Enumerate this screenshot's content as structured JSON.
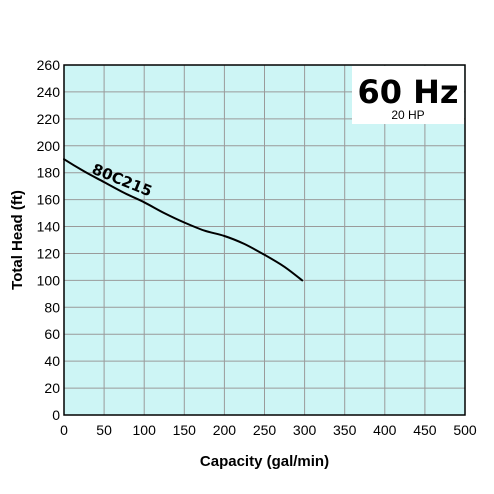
{
  "chart_data": {
    "type": "line",
    "title": "60 Hz",
    "subtitle": "20 HP",
    "xlabel": "Capacity (gal/min)",
    "ylabel": "Total Head (ft)",
    "xlim": [
      0,
      500
    ],
    "ylim": [
      0,
      260
    ],
    "xticks": [
      0,
      50,
      100,
      150,
      200,
      250,
      300,
      350,
      400,
      450,
      500
    ],
    "yticks": [
      0,
      20,
      40,
      60,
      80,
      100,
      120,
      140,
      160,
      180,
      200,
      220,
      240,
      260
    ],
    "grid": true,
    "series": [
      {
        "name": "80C215",
        "x": [
          0,
          25,
          50,
          75,
          100,
          125,
          150,
          175,
          200,
          225,
          250,
          275,
          297
        ],
        "y": [
          190,
          181,
          173,
          165,
          158,
          150,
          143,
          137,
          133,
          127,
          119,
          110,
          100
        ]
      }
    ]
  },
  "colors": {
    "plot_background": "#cdf5f5",
    "grid": "#9a9a9a",
    "curve": "#000000"
  }
}
